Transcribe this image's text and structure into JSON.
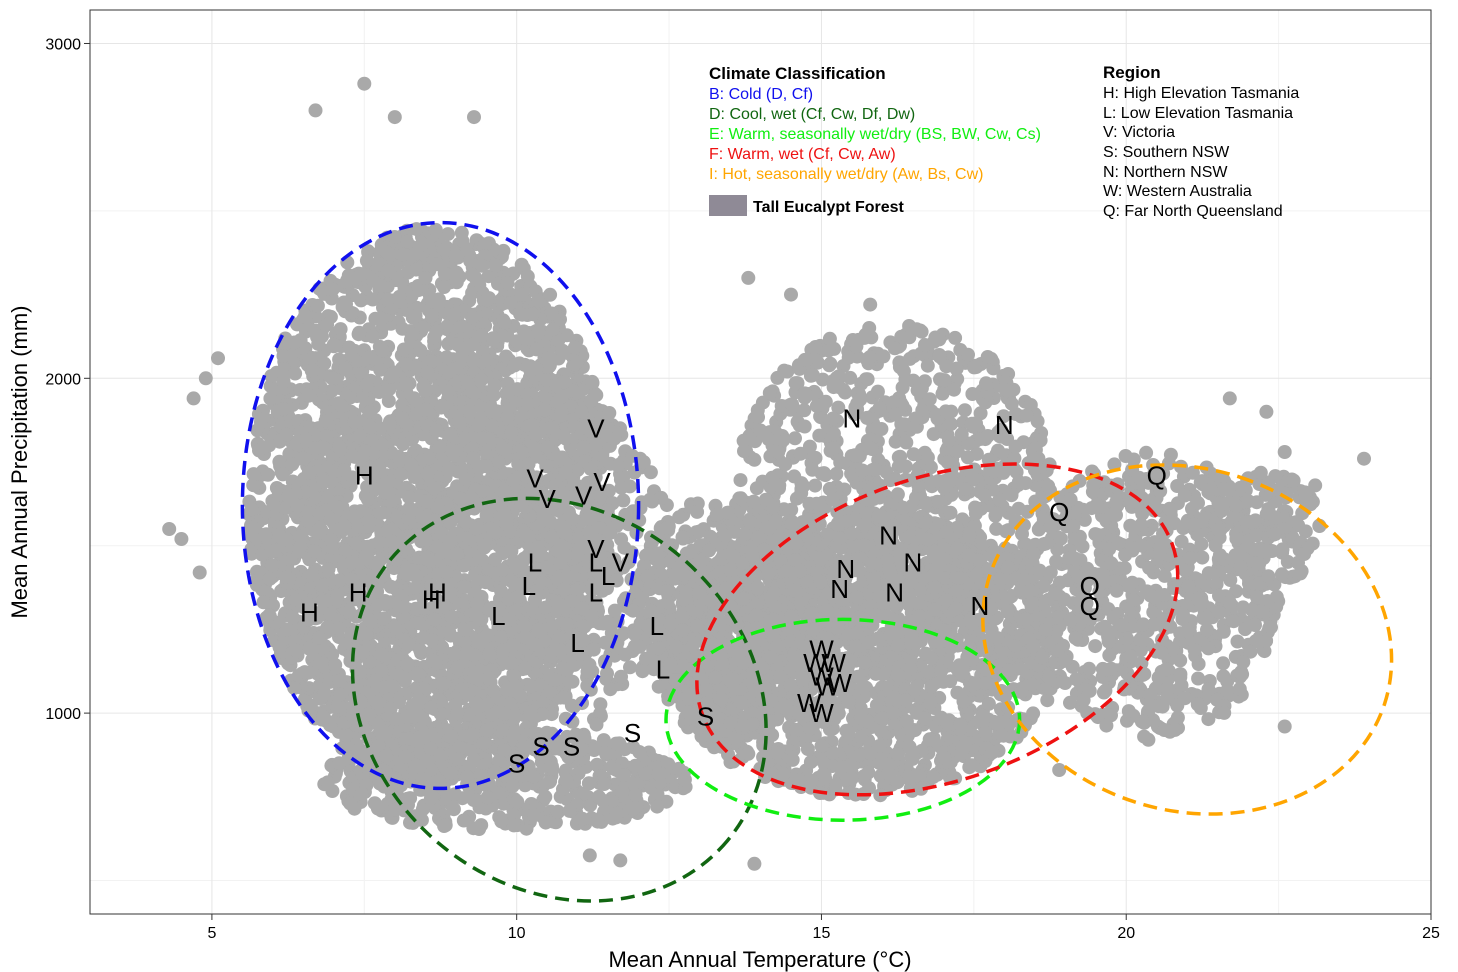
{
  "chart_data": {
    "type": "scatter",
    "xlabel": "Mean Annual Temperature (°C)",
    "ylabel": "Mean Annual Precipitation (mm)",
    "xlim": [
      3,
      25
    ],
    "ylim": [
      400,
      3100
    ],
    "x_ticks": [
      5,
      10,
      15,
      20,
      25
    ],
    "y_ticks": [
      1000,
      2000,
      3000
    ],
    "grid": true,
    "point_color": "#a9a9a9",
    "point_regions": [
      {
        "cx": 8.6,
        "cy": 1620,
        "rx": 3.0,
        "ry": 830,
        "n": 2600
      },
      {
        "cx": 9.2,
        "cy": 1450,
        "rx": 3.4,
        "ry": 620,
        "n": 1200
      },
      {
        "cx": 9.8,
        "cy": 800,
        "rx": 3.0,
        "ry": 150,
        "n": 500
      },
      {
        "cx": 15.6,
        "cy": 1180,
        "rx": 3.3,
        "ry": 430,
        "n": 1800
      },
      {
        "cx": 16.2,
        "cy": 1680,
        "rx": 2.6,
        "ry": 480,
        "n": 900
      },
      {
        "cx": 13.6,
        "cy": 1300,
        "rx": 1.7,
        "ry": 360,
        "n": 500
      },
      {
        "cx": 20.4,
        "cy": 1350,
        "rx": 2.1,
        "ry": 430,
        "n": 700
      },
      {
        "cx": 22.3,
        "cy": 1550,
        "rx": 0.9,
        "ry": 170,
        "n": 120
      }
    ],
    "outlier_points": [
      [
        4.3,
        1550
      ],
      [
        4.5,
        1520
      ],
      [
        4.8,
        1420
      ],
      [
        4.7,
        1940
      ],
      [
        4.9,
        2000
      ],
      [
        5.1,
        2060
      ],
      [
        7.5,
        2880
      ],
      [
        6.7,
        2800
      ],
      [
        9.3,
        2780
      ],
      [
        8.0,
        2780
      ],
      [
        23.9,
        1760
      ],
      [
        23.1,
        1680
      ],
      [
        22.6,
        1780
      ],
      [
        22.3,
        1900
      ],
      [
        21.7,
        1940
      ],
      [
        13.8,
        2300
      ],
      [
        14.5,
        2250
      ],
      [
        15.8,
        2220
      ],
      [
        18.9,
        830
      ],
      [
        20.8,
        950
      ],
      [
        13.9,
        550
      ],
      [
        11.7,
        560
      ],
      [
        11.2,
        575
      ],
      [
        22.6,
        960
      ]
    ],
    "ellipses": [
      {
        "name": "B: Cold (D, Cf)",
        "color": "#1010ee",
        "cx": 8.75,
        "cy": 1620,
        "rx": 3.25,
        "ry": 845
      },
      {
        "name": "D: Cool, wet (Cf, Cw, Df, Dw)",
        "color": "#116611",
        "cx": 10.7,
        "cy": 1040,
        "rx": 3.6,
        "ry": 560,
        "rotate": 40
      },
      {
        "name": "E: Warm, seasonally wet/dry (BS, BW, Cw, Cs)",
        "color": "#11ee11",
        "cx": 15.35,
        "cy": 980,
        "rx": 2.9,
        "ry": 300
      },
      {
        "name": "F: Warm, wet (Cf, Cw, Aw)",
        "color": "#ee1111",
        "cx": 16.9,
        "cy": 1250,
        "rx": 4.1,
        "ry": 450,
        "rotate": -20
      },
      {
        "name": "I: Hot, seasonally wet/dry (Aw, Bs, Cw)",
        "color": "#ffa500",
        "cx": 21.0,
        "cy": 1220,
        "rx": 2.8,
        "ry": 620,
        "rotate": -72
      }
    ],
    "site_labels": [
      {
        "t": "H",
        "x": 7.5,
        "y": 1710
      },
      {
        "t": "H",
        "x": 7.4,
        "y": 1360
      },
      {
        "t": "H",
        "x": 8.7,
        "y": 1360
      },
      {
        "t": "H",
        "x": 8.6,
        "y": 1340
      },
      {
        "t": "H",
        "x": 6.6,
        "y": 1300
      },
      {
        "t": "L",
        "x": 10.3,
        "y": 1450
      },
      {
        "t": "L",
        "x": 10.2,
        "y": 1380
      },
      {
        "t": "L",
        "x": 11.3,
        "y": 1450
      },
      {
        "t": "L",
        "x": 11.5,
        "y": 1410
      },
      {
        "t": "L",
        "x": 11.3,
        "y": 1360
      },
      {
        "t": "L",
        "x": 9.7,
        "y": 1290
      },
      {
        "t": "L",
        "x": 11.0,
        "y": 1210
      },
      {
        "t": "L",
        "x": 12.3,
        "y": 1260
      },
      {
        "t": "L",
        "x": 12.4,
        "y": 1130
      },
      {
        "t": "V",
        "x": 11.3,
        "y": 1850
      },
      {
        "t": "V",
        "x": 10.3,
        "y": 1700
      },
      {
        "t": "V",
        "x": 11.4,
        "y": 1690
      },
      {
        "t": "V",
        "x": 10.5,
        "y": 1640
      },
      {
        "t": "V",
        "x": 11.1,
        "y": 1650
      },
      {
        "t": "V",
        "x": 11.3,
        "y": 1490
      },
      {
        "t": "V",
        "x": 11.7,
        "y": 1450
      },
      {
        "t": "S",
        "x": 10.0,
        "y": 850
      },
      {
        "t": "S",
        "x": 10.4,
        "y": 900
      },
      {
        "t": "S",
        "x": 10.9,
        "y": 900
      },
      {
        "t": "S",
        "x": 11.9,
        "y": 940
      },
      {
        "t": "S",
        "x": 13.1,
        "y": 990
      },
      {
        "t": "N",
        "x": 15.5,
        "y": 1880
      },
      {
        "t": "N",
        "x": 18.0,
        "y": 1860
      },
      {
        "t": "N",
        "x": 16.1,
        "y": 1530
      },
      {
        "t": "N",
        "x": 16.5,
        "y": 1450
      },
      {
        "t": "N",
        "x": 15.4,
        "y": 1430
      },
      {
        "t": "N",
        "x": 15.3,
        "y": 1370
      },
      {
        "t": "N",
        "x": 16.2,
        "y": 1360
      },
      {
        "t": "N",
        "x": 17.6,
        "y": 1320
      },
      {
        "t": "W",
        "x": 15.0,
        "y": 1190
      },
      {
        "t": "W",
        "x": 14.9,
        "y": 1150
      },
      {
        "t": "W",
        "x": 15.2,
        "y": 1150
      },
      {
        "t": "W",
        "x": 15.0,
        "y": 1110
      },
      {
        "t": "W",
        "x": 15.3,
        "y": 1090
      },
      {
        "t": "W",
        "x": 15.1,
        "y": 1080
      },
      {
        "t": "W",
        "x": 14.8,
        "y": 1030
      },
      {
        "t": "W",
        "x": 15.0,
        "y": 1000
      },
      {
        "t": "Q",
        "x": 20.5,
        "y": 1710
      },
      {
        "t": "Q",
        "x": 18.9,
        "y": 1600
      },
      {
        "t": "Q",
        "x": 19.4,
        "y": 1380
      },
      {
        "t": "Q",
        "x": 19.4,
        "y": 1320
      }
    ]
  },
  "legend_climate": {
    "title": "Climate Classification",
    "items": [
      {
        "label": "B: Cold (D, Cf)",
        "color": "#1010ee"
      },
      {
        "label": "D: Cool, wet (Cf, Cw, Df, Dw)",
        "color": "#116611"
      },
      {
        "label": "E: Warm, seasonally wet/dry (BS, BW, Cw, Cs)",
        "color": "#11ee11"
      },
      {
        "label": "F: Warm, wet (Cf, Cw, Aw)",
        "color": "#ee1111"
      },
      {
        "label": "I: Hot, seasonally wet/dry (Aw, Bs, Cw)",
        "color": "#ffa500"
      }
    ],
    "forest_label": "Tall Eucalypt Forest",
    "forest_color": "#8f8a96"
  },
  "legend_region": {
    "title": "Region",
    "items": [
      "H: High Elevation Tasmania",
      "L: Low Elevation Tasmania",
      "V: Victoria",
      "S: Southern NSW",
      "N: Northern NSW",
      "W: Western Australia",
      "Q: Far North Queensland"
    ]
  }
}
